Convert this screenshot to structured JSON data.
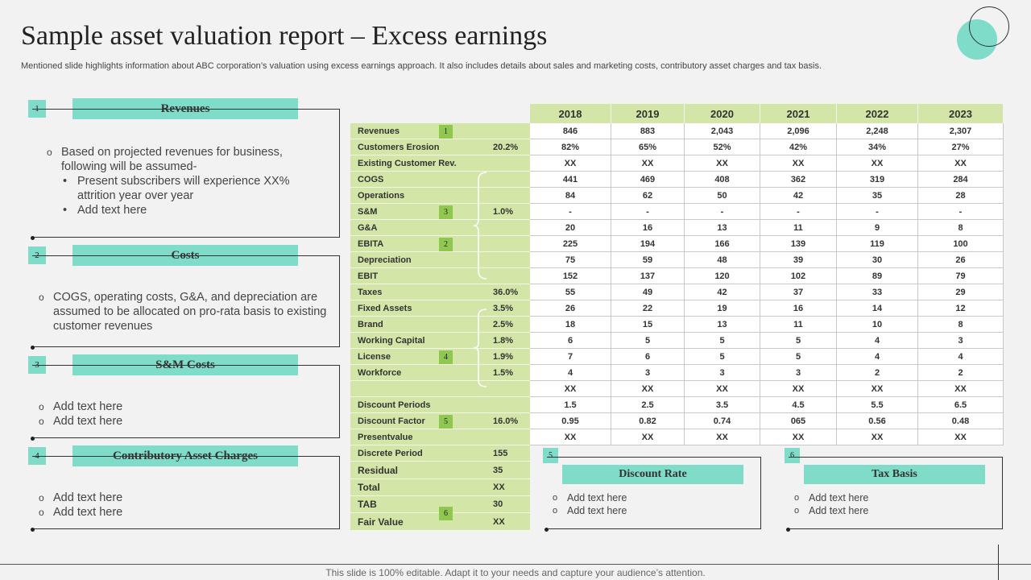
{
  "title": "Sample asset valuation report – Excess earnings",
  "subtitle": "Mentioned slide highlights information about ABC corporation’s valuation using excess earnings approach. It also includes details about sales and marketing costs, contributory asset charges and tax basis.",
  "colors": {
    "accent": "#7fdcc8",
    "table_green": "#d3e6a7",
    "tag_green": "#8fc74f"
  },
  "panels": [
    {
      "num": "1",
      "header": "Revenues",
      "bullet": "Based on projected revenues for business, following will be assumed-",
      "subs": [
        "Present subscribers will experience XX% attrition year over year",
        "Add text here"
      ]
    },
    {
      "num": "2",
      "header": "Costs",
      "bullet": "COGS, operating costs, G&A, and depreciation are assumed to be allocated on pro-rata basis to existing customer revenues"
    },
    {
      "num": "3",
      "header": "S&M Costs",
      "bullets": [
        "Add text here",
        "Add text here"
      ]
    },
    {
      "num": "4",
      "header": "Contributory Asset Charges",
      "bullets": [
        "Add text here",
        "Add text here"
      ]
    }
  ],
  "table": {
    "years": [
      "2018",
      "2019",
      "2020",
      "2021",
      "2022",
      "2023"
    ],
    "rows": [
      {
        "label": "Revenues",
        "pct": "",
        "tag": "1",
        "values": [
          "846",
          "883",
          "2,043",
          "2,096",
          "2,248",
          "2,307"
        ]
      },
      {
        "label": "Customers Erosion",
        "pct": "20.2%",
        "values": [
          "82%",
          "65%",
          "52%",
          "42%",
          "34%",
          "27%"
        ]
      },
      {
        "label": "Existing Customer Rev.",
        "pct": "",
        "values": [
          "XX",
          "XX",
          "XX",
          "XX",
          "XX",
          "XX"
        ]
      },
      {
        "label": "COGS",
        "pct": "",
        "values": [
          "441",
          "469",
          "408",
          "362",
          "319",
          "284"
        ]
      },
      {
        "label": "Operations",
        "pct": "",
        "values": [
          "84",
          "62",
          "50",
          "42",
          "35",
          "28"
        ]
      },
      {
        "label": "S&M",
        "pct": "1.0%",
        "tag": "3",
        "values": [
          "-",
          "-",
          "-",
          "-",
          "-",
          "-"
        ]
      },
      {
        "label": "G&A",
        "pct": "",
        "values": [
          "20",
          "16",
          "13",
          "11",
          "9",
          "8"
        ]
      },
      {
        "label": "EBITA",
        "pct": "",
        "tag": "2",
        "values": [
          "225",
          "194",
          "166",
          "139",
          "119",
          "100"
        ]
      },
      {
        "label": "Depreciation",
        "pct": "",
        "values": [
          "75",
          "59",
          "48",
          "39",
          "30",
          "26"
        ]
      },
      {
        "label": "EBIT",
        "pct": "",
        "values": [
          "152",
          "137",
          "120",
          "102",
          "89",
          "79"
        ]
      },
      {
        "label": "Taxes",
        "pct": "36.0%",
        "values": [
          "55",
          "49",
          "42",
          "37",
          "33",
          "29"
        ]
      },
      {
        "label": "Fixed Assets",
        "pct": "3.5%",
        "values": [
          "26",
          "22",
          "19",
          "16",
          "14",
          "12"
        ]
      },
      {
        "label": "Brand",
        "pct": "2.5%",
        "values": [
          "18",
          "15",
          "13",
          "11",
          "10",
          "8"
        ]
      },
      {
        "label": "Working Capital",
        "pct": "1.8%",
        "values": [
          "6",
          "5",
          "5",
          "5",
          "4",
          "3"
        ]
      },
      {
        "label": "License",
        "pct": "1.9%",
        "tag": "4",
        "values": [
          "7",
          "6",
          "5",
          "5",
          "4",
          "4"
        ]
      },
      {
        "label": "Workforce",
        "pct": "1.5%",
        "values": [
          "4",
          "3",
          "3",
          "3",
          "2",
          "2"
        ]
      },
      {
        "label": "",
        "pct": "",
        "values": [
          "XX",
          "XX",
          "XX",
          "XX",
          "XX",
          "XX"
        ]
      },
      {
        "label": "Discount Periods",
        "pct": "",
        "values": [
          "1.5",
          "2.5",
          "3.5",
          "4.5",
          "5.5",
          "6.5"
        ]
      },
      {
        "label": "Discount Factor",
        "pct": "16.0%",
        "tag": "5",
        "values": [
          "0.95",
          "0.82",
          "0.74",
          "065",
          "0.56",
          "0.48"
        ]
      },
      {
        "label": "Presentvalue",
        "pct": "",
        "values": [
          "XX",
          "XX",
          "XX",
          "XX",
          "XX",
          "XX"
        ]
      }
    ],
    "summary": [
      {
        "label": "Discrete Period",
        "value": "155"
      },
      {
        "label": "Residual",
        "value": "35"
      },
      {
        "label": "Total",
        "value": "XX"
      },
      {
        "label": "TAB",
        "value": "30",
        "tag": "6"
      },
      {
        "label": "Fair Value",
        "value": "XX"
      }
    ]
  },
  "boxes": [
    {
      "num": "5",
      "header": "Discount Rate",
      "bullets": [
        "Add text here",
        "Add text here"
      ]
    },
    {
      "num": "6",
      "header": "Tax Basis",
      "bullets": [
        "Add text here",
        "Add text here"
      ]
    }
  ],
  "footer": "This slide is 100% editable. Adapt it to your needs and capture your audience’s attention."
}
